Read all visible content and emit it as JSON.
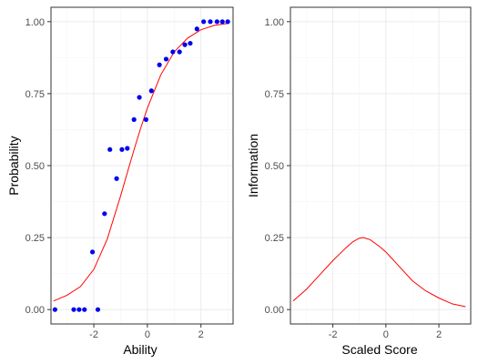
{
  "chart_data": [
    {
      "type": "scatter",
      "xlabel": "Ability",
      "ylabel": "Probability",
      "xlim": [
        -3.6,
        3.2
      ],
      "ylim": [
        -0.05,
        1.05
      ],
      "x_ticks": [
        -2,
        0,
        2
      ],
      "x_tick_labels": [
        "-2",
        "0",
        "2"
      ],
      "y_ticks": [
        0,
        0.25,
        0.5,
        0.75,
        1
      ],
      "y_tick_labels": [
        "0.00",
        "0.25",
        "0.50",
        "0.75",
        "1.00"
      ],
      "grid": true,
      "points_color": "#0000ee",
      "curve_color": "#ff0000",
      "points": [
        {
          "x": -3.45,
          "y": 0.0
        },
        {
          "x": -2.75,
          "y": 0.0
        },
        {
          "x": -2.55,
          "y": 0.0
        },
        {
          "x": -2.35,
          "y": 0.0
        },
        {
          "x": -2.05,
          "y": 0.2
        },
        {
          "x": -1.85,
          "y": 0.0
        },
        {
          "x": -1.6,
          "y": 0.333
        },
        {
          "x": -1.4,
          "y": 0.556
        },
        {
          "x": -1.15,
          "y": 0.455
        },
        {
          "x": -0.95,
          "y": 0.556
        },
        {
          "x": -0.75,
          "y": 0.56
        },
        {
          "x": -0.5,
          "y": 0.66
        },
        {
          "x": -0.3,
          "y": 0.737
        },
        {
          "x": -0.05,
          "y": 0.66
        },
        {
          "x": 0.15,
          "y": 0.76
        },
        {
          "x": 0.45,
          "y": 0.85
        },
        {
          "x": 0.7,
          "y": 0.87
        },
        {
          "x": 0.95,
          "y": 0.895
        },
        {
          "x": 1.2,
          "y": 0.895
        },
        {
          "x": 1.4,
          "y": 0.92
        },
        {
          "x": 1.6,
          "y": 0.925
        },
        {
          "x": 1.85,
          "y": 0.975
        },
        {
          "x": 2.1,
          "y": 1.0
        },
        {
          "x": 2.35,
          "y": 1.0
        },
        {
          "x": 2.6,
          "y": 1.0
        },
        {
          "x": 2.8,
          "y": 1.0
        },
        {
          "x": 3.0,
          "y": 1.0
        }
      ],
      "curve": {
        "x": [
          -3.5,
          -3.0,
          -2.5,
          -2.0,
          -1.5,
          -1.0,
          -0.75,
          -0.5,
          -0.25,
          0.0,
          0.5,
          1.0,
          1.5,
          2.0,
          2.5,
          3.0
        ],
        "y": [
          0.03,
          0.05,
          0.08,
          0.14,
          0.245,
          0.395,
          0.475,
          0.555,
          0.63,
          0.7,
          0.815,
          0.895,
          0.943,
          0.972,
          0.987,
          0.994
        ]
      }
    },
    {
      "type": "line",
      "xlabel": "Scaled Score",
      "ylabel": "Information",
      "xlim": [
        -3.6,
        3.2
      ],
      "ylim": [
        -0.05,
        1.05
      ],
      "x_ticks": [
        -2,
        0,
        2
      ],
      "x_tick_labels": [
        "-2",
        "0",
        "2"
      ],
      "y_ticks": [
        0,
        0.25,
        0.5,
        0.75,
        1
      ],
      "y_tick_labels": [
        "0.00",
        "0.25",
        "0.50",
        "0.75",
        "1.00"
      ],
      "grid": true,
      "curve_color": "#ff0000",
      "curve": {
        "x": [
          -3.5,
          -3.0,
          -2.5,
          -2.0,
          -1.5,
          -1.25,
          -1.0,
          -0.85,
          -0.6,
          -0.25,
          0.0,
          0.5,
          1.0,
          1.5,
          2.0,
          2.5,
          3.0
        ],
        "y": [
          0.03,
          0.07,
          0.12,
          0.17,
          0.215,
          0.235,
          0.248,
          0.25,
          0.243,
          0.22,
          0.2,
          0.15,
          0.1,
          0.065,
          0.04,
          0.02,
          0.01
        ]
      }
    }
  ]
}
